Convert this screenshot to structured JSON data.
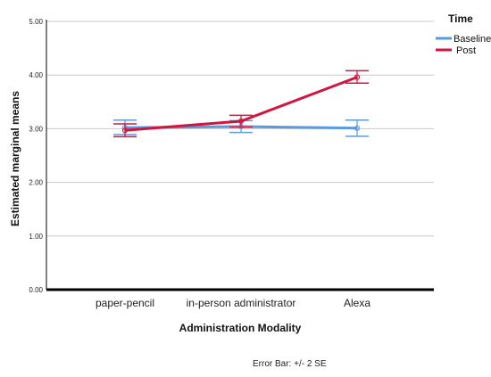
{
  "chart_data": {
    "type": "line",
    "xlabel": "Administration Modality",
    "ylabel": "Estimated marginal means",
    "ylim": [
      0,
      5
    ],
    "yticks": [
      "0.00",
      "1.00",
      "2.00",
      "3.00",
      "4.00",
      "5.00"
    ],
    "categories": [
      "paper-pencil",
      "in-person administrator",
      "Alexa"
    ],
    "legend": {
      "title": "Time",
      "position": "top-right"
    },
    "grid": true,
    "series": [
      {
        "name": "Baseline",
        "color": "#5b9bdc",
        "values": [
          3.02,
          3.04,
          3.01
        ],
        "error_low": [
          2.89,
          2.93,
          2.86
        ],
        "error_high": [
          3.16,
          3.15,
          3.16
        ]
      },
      {
        "name": "Post",
        "color": "#d0153f",
        "values": [
          2.97,
          3.14,
          3.96
        ],
        "error_low": [
          2.85,
          3.03,
          3.85
        ],
        "error_high": [
          3.09,
          3.25,
          4.08
        ]
      }
    ],
    "note": "Error Bar: +/- 2 SE"
  }
}
